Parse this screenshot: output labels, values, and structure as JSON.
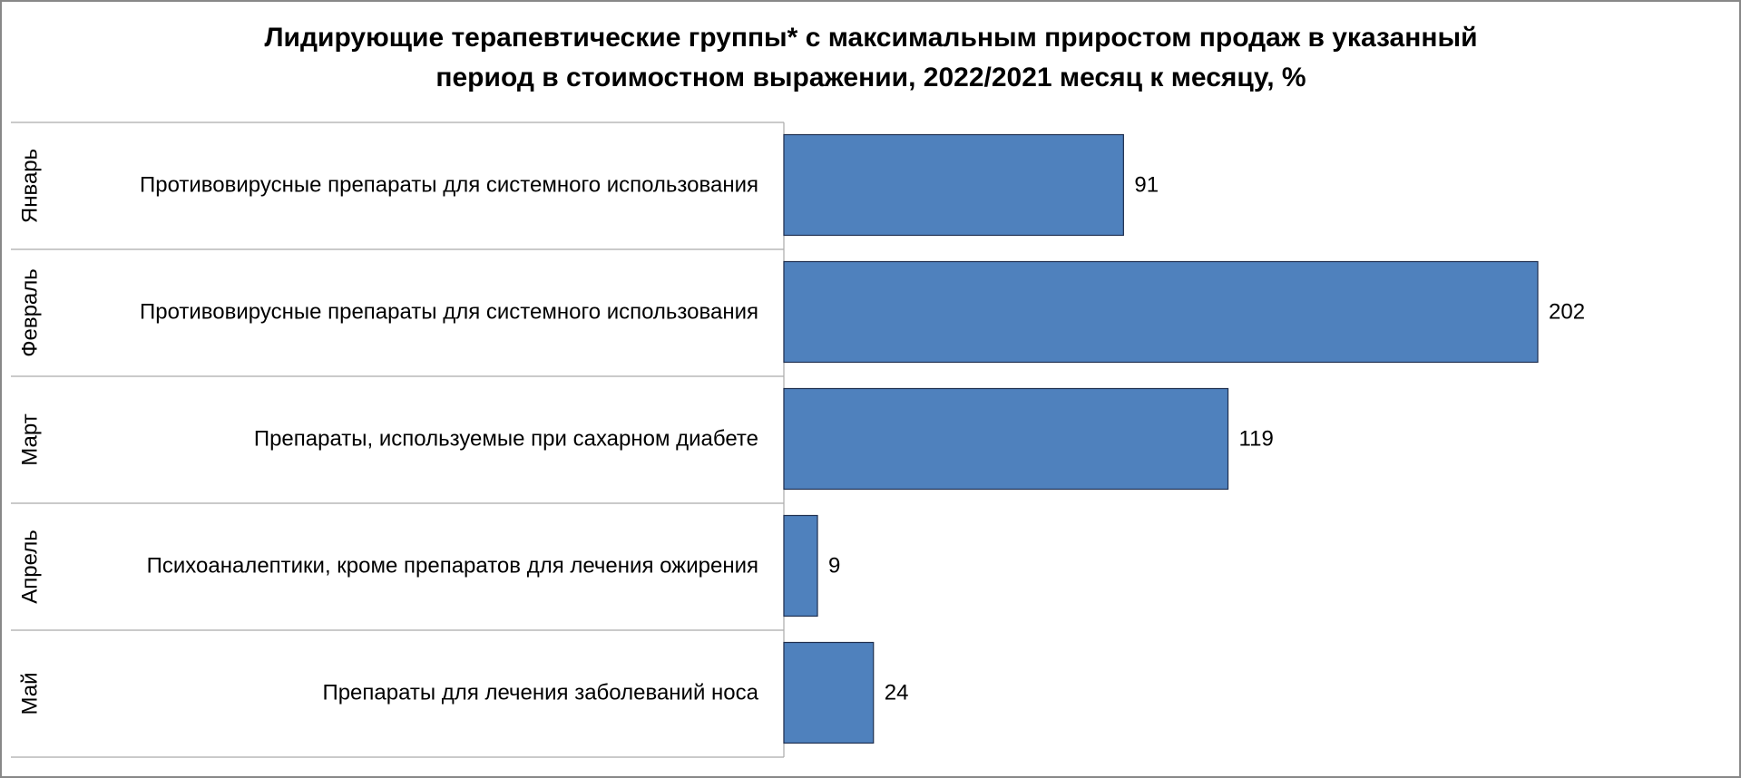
{
  "chart_data": {
    "type": "bar",
    "orientation": "horizontal",
    "title": [
      "Лидирующие терапевтические группы* с максимальным приростом продаж в указанный",
      "период в стоимостном выражении, 2022/2021 месяц к месяцу, %"
    ],
    "categories": [
      "Январь",
      "Февраль",
      "Март",
      "Апрель",
      "Май"
    ],
    "subcategories": [
      "Противовирусные препараты для системного использования",
      "Противовирусные препараты для системного использования",
      "Препараты, используемые при сахарном диабете",
      "Психоаналептики, кроме препаратов для лечения ожирения",
      "Препараты для лечения заболеваний носа"
    ],
    "values": [
      91,
      202,
      119,
      9,
      24
    ],
    "color": "#4f81bd"
  }
}
